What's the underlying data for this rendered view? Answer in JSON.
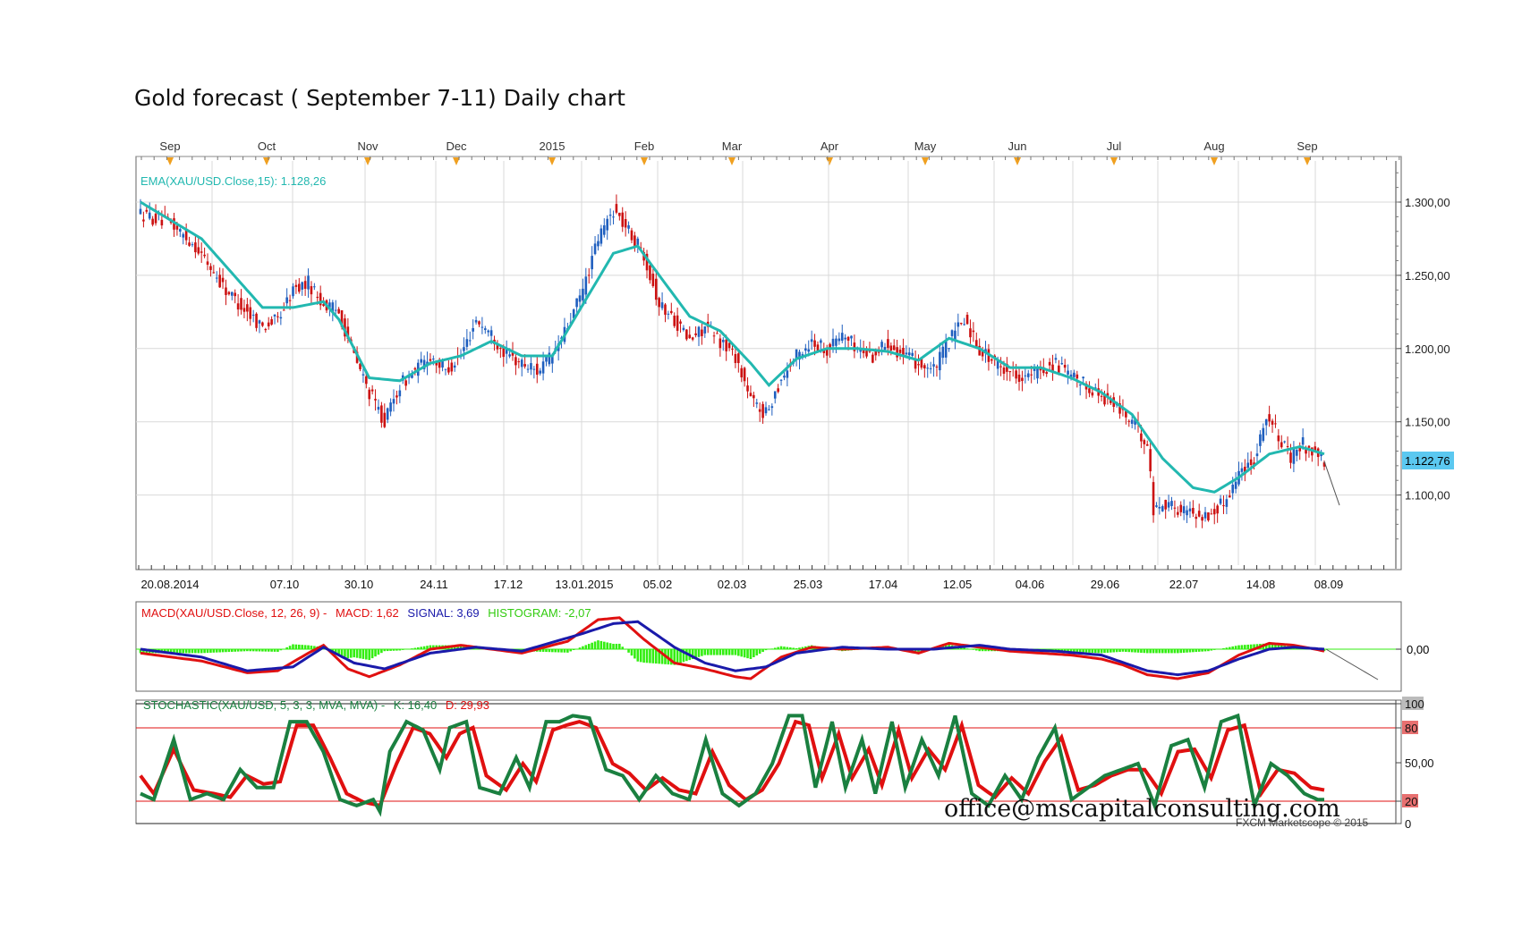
{
  "title": "Gold forecast ( September 7-11) Daily chart",
  "watermark": "office@mscapitalconsulting.com",
  "copyright": "FXCM Marketscope © 2015",
  "colors": {
    "bull": "#1f5fbf",
    "bear": "#cc1111",
    "ema": "#22b8b0",
    "macd": "#e01010",
    "signal": "#1a1aaa",
    "histogram": "#33ee11",
    "stoch_k": "#1a8040",
    "stoch_d": "#e01010",
    "price_badge": "#5bc8f0",
    "grid": "#d9d9d9",
    "month_marker": "#f0a020"
  },
  "chart_data": [
    {
      "type": "candlestick",
      "symbol": "XAU/USD",
      "timeframe": "Daily",
      "indicator_label": "EMA(XAU/USD.Close,15): 1.128,26",
      "last_price_label": "1.122,76",
      "month_labels": [
        "Sep",
        "Oct",
        "Nov",
        "Dec",
        "2015",
        "Feb",
        "Mar",
        "Apr",
        "May",
        "Jun",
        "Jul",
        "Aug",
        "Sep"
      ],
      "date_labels": [
        "20.08.2014",
        "07.10",
        "30.10",
        "24.11",
        "17.12",
        "13.01.2015",
        "05.02",
        "02.03",
        "25.03",
        "17.04",
        "12.05",
        "04.06",
        "29.06",
        "22.07",
        "14.08",
        "08.09"
      ],
      "y_ticks": [
        "1.100,00",
        "1.150,00",
        "1.200,00",
        "1.250,00",
        "1.300,00"
      ],
      "ylim": [
        1062,
        1332
      ],
      "close_path_anchors": [
        [
          0,
          1292
        ],
        [
          10,
          1285
        ],
        [
          18,
          1270
        ],
        [
          28,
          1240
        ],
        [
          35,
          1225
        ],
        [
          40,
          1215
        ],
        [
          45,
          1220
        ],
        [
          50,
          1240
        ],
        [
          55,
          1245
        ],
        [
          60,
          1230
        ],
        [
          65,
          1225
        ],
        [
          70,
          1195
        ],
        [
          75,
          1170
        ],
        [
          80,
          1150
        ],
        [
          85,
          1175
        ],
        [
          90,
          1185
        ],
        [
          95,
          1195
        ],
        [
          100,
          1185
        ],
        [
          105,
          1195
        ],
        [
          110,
          1220
        ],
        [
          115,
          1210
        ],
        [
          120,
          1195
        ],
        [
          125,
          1190
        ],
        [
          130,
          1185
        ],
        [
          135,
          1195
        ],
        [
          140,
          1215
        ],
        [
          145,
          1240
        ],
        [
          150,
          1275
        ],
        [
          155,
          1295
        ],
        [
          160,
          1280
        ],
        [
          165,
          1265
        ],
        [
          170,
          1230
        ],
        [
          175,
          1220
        ],
        [
          180,
          1205
        ],
        [
          185,
          1215
        ],
        [
          190,
          1205
        ],
        [
          195,
          1195
        ],
        [
          200,
          1165
        ],
        [
          205,
          1155
        ],
        [
          210,
          1180
        ],
        [
          215,
          1195
        ],
        [
          220,
          1205
        ],
        [
          225,
          1200
        ],
        [
          230,
          1210
        ],
        [
          235,
          1200
        ],
        [
          240,
          1195
        ],
        [
          245,
          1205
        ],
        [
          250,
          1195
        ],
        [
          255,
          1190
        ],
        [
          260,
          1185
        ],
        [
          265,
          1205
        ],
        [
          270,
          1220
        ],
        [
          275,
          1200
        ],
        [
          280,
          1190
        ],
        [
          285,
          1185
        ],
        [
          290,
          1180
        ],
        [
          295,
          1185
        ],
        [
          300,
          1190
        ],
        [
          305,
          1180
        ],
        [
          310,
          1175
        ],
        [
          315,
          1168
        ],
        [
          320,
          1160
        ],
        [
          325,
          1150
        ],
        [
          330,
          1135
        ],
        [
          332,
          1090
        ],
        [
          336,
          1095
        ],
        [
          340,
          1090
        ],
        [
          345,
          1088
        ],
        [
          350,
          1085
        ],
        [
          355,
          1095
        ],
        [
          360,
          1115
        ],
        [
          365,
          1125
        ],
        [
          369,
          1155
        ],
        [
          373,
          1140
        ],
        [
          377,
          1125
        ],
        [
          381,
          1135
        ],
        [
          385,
          1128
        ],
        [
          388,
          1123
        ]
      ],
      "ema_anchors": [
        [
          0,
          1300
        ],
        [
          20,
          1275
        ],
        [
          40,
          1228
        ],
        [
          50,
          1228
        ],
        [
          60,
          1232
        ],
        [
          65,
          1220
        ],
        [
          75,
          1180
        ],
        [
          85,
          1178
        ],
        [
          95,
          1190
        ],
        [
          105,
          1195
        ],
        [
          115,
          1205
        ],
        [
          125,
          1195
        ],
        [
          135,
          1195
        ],
        [
          145,
          1230
        ],
        [
          155,
          1265
        ],
        [
          163,
          1270
        ],
        [
          170,
          1250
        ],
        [
          180,
          1222
        ],
        [
          190,
          1212
        ],
        [
          200,
          1190
        ],
        [
          206,
          1175
        ],
        [
          215,
          1193
        ],
        [
          225,
          1200
        ],
        [
          235,
          1200
        ],
        [
          245,
          1198
        ],
        [
          255,
          1192
        ],
        [
          265,
          1207
        ],
        [
          275,
          1200
        ],
        [
          285,
          1187
        ],
        [
          295,
          1187
        ],
        [
          305,
          1180
        ],
        [
          315,
          1170
        ],
        [
          325,
          1155
        ],
        [
          335,
          1125
        ],
        [
          345,
          1105
        ],
        [
          352,
          1102
        ],
        [
          360,
          1112
        ],
        [
          370,
          1128
        ],
        [
          380,
          1133
        ],
        [
          388,
          1128
        ]
      ]
    },
    {
      "type": "line",
      "name": "MACD",
      "label_parts": [
        "MACD(XAU/USD.Close, 12, 26, 9) -",
        "MACD: 1,62",
        "SIGNAL: 3,69",
        "HISTOGRAM: -2,07"
      ],
      "zero_label": "0,00",
      "macd_anchors": [
        [
          0,
          -2
        ],
        [
          20,
          -6
        ],
        [
          35,
          -12
        ],
        [
          45,
          -11
        ],
        [
          55,
          -2
        ],
        [
          60,
          2
        ],
        [
          68,
          -10
        ],
        [
          75,
          -14
        ],
        [
          85,
          -8
        ],
        [
          95,
          0
        ],
        [
          105,
          2
        ],
        [
          115,
          0
        ],
        [
          125,
          -2
        ],
        [
          140,
          4
        ],
        [
          150,
          15
        ],
        [
          157,
          16
        ],
        [
          165,
          5
        ],
        [
          175,
          -7
        ],
        [
          185,
          -10
        ],
        [
          195,
          -14
        ],
        [
          200,
          -15
        ],
        [
          210,
          -4
        ],
        [
          220,
          1
        ],
        [
          230,
          0
        ],
        [
          245,
          1
        ],
        [
          255,
          -2
        ],
        [
          265,
          3
        ],
        [
          275,
          1
        ],
        [
          285,
          -1
        ],
        [
          295,
          -2
        ],
        [
          305,
          -3
        ],
        [
          315,
          -5
        ],
        [
          322,
          -8
        ],
        [
          330,
          -13
        ],
        [
          340,
          -15
        ],
        [
          350,
          -12
        ],
        [
          360,
          -3
        ],
        [
          370,
          3
        ],
        [
          378,
          2
        ],
        [
          385,
          0
        ],
        [
          388,
          -1
        ]
      ],
      "signal_anchors": [
        [
          0,
          0
        ],
        [
          20,
          -4
        ],
        [
          35,
          -11
        ],
        [
          50,
          -9
        ],
        [
          60,
          1
        ],
        [
          70,
          -7
        ],
        [
          80,
          -10
        ],
        [
          95,
          -2
        ],
        [
          110,
          1
        ],
        [
          125,
          -1
        ],
        [
          145,
          8
        ],
        [
          155,
          13
        ],
        [
          163,
          14
        ],
        [
          175,
          1
        ],
        [
          185,
          -7
        ],
        [
          195,
          -11
        ],
        [
          205,
          -9
        ],
        [
          215,
          -2
        ],
        [
          230,
          1
        ],
        [
          245,
          0
        ],
        [
          260,
          0
        ],
        [
          275,
          2
        ],
        [
          285,
          0
        ],
        [
          300,
          -1
        ],
        [
          315,
          -3
        ],
        [
          330,
          -11
        ],
        [
          340,
          -13
        ],
        [
          350,
          -11
        ],
        [
          360,
          -5
        ],
        [
          370,
          0
        ],
        [
          378,
          1
        ],
        [
          388,
          0
        ]
      ]
    },
    {
      "type": "line",
      "name": "Stochastic",
      "label_parts": [
        "STOCHASTIC(XAU/USD, 5, 3, 3, MVA, MVA) -",
        "K: 16,40",
        "D: 29,93"
      ],
      "y_ticks": [
        "100",
        "80",
        "50,00",
        "20",
        "0"
      ],
      "ylim": [
        0,
        100
      ],
      "k_anchors": [
        [
          0,
          25
        ],
        [
          4,
          20
        ],
        [
          10,
          70
        ],
        [
          15,
          20
        ],
        [
          20,
          25
        ],
        [
          25,
          20
        ],
        [
          30,
          45
        ],
        [
          35,
          30
        ],
        [
          40,
          30
        ],
        [
          45,
          85
        ],
        [
          50,
          85
        ],
        [
          55,
          60
        ],
        [
          60,
          20
        ],
        [
          65,
          15
        ],
        [
          70,
          20
        ],
        [
          72,
          10
        ],
        [
          75,
          60
        ],
        [
          80,
          85
        ],
        [
          85,
          78
        ],
        [
          90,
          45
        ],
        [
          93,
          80
        ],
        [
          98,
          85
        ],
        [
          102,
          30
        ],
        [
          108,
          25
        ],
        [
          113,
          55
        ],
        [
          117,
          30
        ],
        [
          122,
          85
        ],
        [
          126,
          85
        ],
        [
          130,
          90
        ],
        [
          135,
          88
        ],
        [
          140,
          45
        ],
        [
          145,
          40
        ],
        [
          150,
          20
        ],
        [
          155,
          40
        ],
        [
          160,
          25
        ],
        [
          165,
          20
        ],
        [
          170,
          70
        ],
        [
          175,
          25
        ],
        [
          180,
          15
        ],
        [
          185,
          25
        ],
        [
          190,
          50
        ],
        [
          195,
          90
        ],
        [
          199,
          90
        ],
        [
          203,
          30
        ],
        [
          208,
          85
        ],
        [
          212,
          30
        ],
        [
          217,
          70
        ],
        [
          221,
          25
        ],
        [
          226,
          85
        ],
        [
          230,
          30
        ],
        [
          235,
          70
        ],
        [
          240,
          40
        ],
        [
          245,
          90
        ],
        [
          250,
          25
        ],
        [
          255,
          15
        ],
        [
          260,
          40
        ],
        [
          265,
          20
        ],
        [
          270,
          55
        ],
        [
          275,
          80
        ],
        [
          280,
          20
        ],
        [
          285,
          30
        ],
        [
          290,
          40
        ],
        [
          295,
          45
        ],
        [
          300,
          50
        ],
        [
          305,
          15
        ],
        [
          310,
          65
        ],
        [
          315,
          70
        ],
        [
          320,
          30
        ],
        [
          325,
          85
        ],
        [
          330,
          90
        ],
        [
          335,
          15
        ],
        [
          340,
          50
        ],
        [
          345,
          40
        ],
        [
          350,
          25
        ],
        [
          354,
          20
        ]
      ],
      "d_anchors": [
        [
          0,
          40
        ],
        [
          4,
          25
        ],
        [
          10,
          62
        ],
        [
          16,
          28
        ],
        [
          22,
          25
        ],
        [
          27,
          22
        ],
        [
          32,
          40
        ],
        [
          37,
          33
        ],
        [
          42,
          35
        ],
        [
          47,
          82
        ],
        [
          52,
          82
        ],
        [
          57,
          55
        ],
        [
          62,
          25
        ],
        [
          67,
          18
        ],
        [
          72,
          15
        ],
        [
          77,
          50
        ],
        [
          82,
          80
        ],
        [
          87,
          75
        ],
        [
          92,
          55
        ],
        [
          96,
          75
        ],
        [
          100,
          80
        ],
        [
          104,
          40
        ],
        [
          110,
          28
        ],
        [
          115,
          50
        ],
        [
          119,
          35
        ],
        [
          124,
          78
        ],
        [
          128,
          82
        ],
        [
          132,
          85
        ],
        [
          137,
          80
        ],
        [
          142,
          50
        ],
        [
          147,
          42
        ],
        [
          152,
          28
        ],
        [
          157,
          38
        ],
        [
          162,
          28
        ],
        [
          167,
          25
        ],
        [
          172,
          60
        ],
        [
          177,
          32
        ],
        [
          182,
          20
        ],
        [
          187,
          28
        ],
        [
          192,
          50
        ],
        [
          197,
          85
        ],
        [
          201,
          82
        ],
        [
          205,
          38
        ],
        [
          210,
          75
        ],
        [
          214,
          38
        ],
        [
          219,
          62
        ],
        [
          223,
          32
        ],
        [
          228,
          78
        ],
        [
          232,
          38
        ],
        [
          237,
          62
        ],
        [
          242,
          45
        ],
        [
          247,
          82
        ],
        [
          252,
          32
        ],
        [
          257,
          22
        ],
        [
          262,
          38
        ],
        [
          267,
          25
        ],
        [
          272,
          52
        ],
        [
          277,
          72
        ],
        [
          282,
          28
        ],
        [
          287,
          32
        ],
        [
          292,
          40
        ],
        [
          297,
          45
        ],
        [
          302,
          45
        ],
        [
          307,
          25
        ],
        [
          312,
          60
        ],
        [
          317,
          62
        ],
        [
          322,
          38
        ],
        [
          327,
          78
        ],
        [
          332,
          82
        ],
        [
          337,
          25
        ],
        [
          342,
          45
        ],
        [
          347,
          42
        ],
        [
          352,
          30
        ],
        [
          356,
          28
        ]
      ]
    }
  ]
}
